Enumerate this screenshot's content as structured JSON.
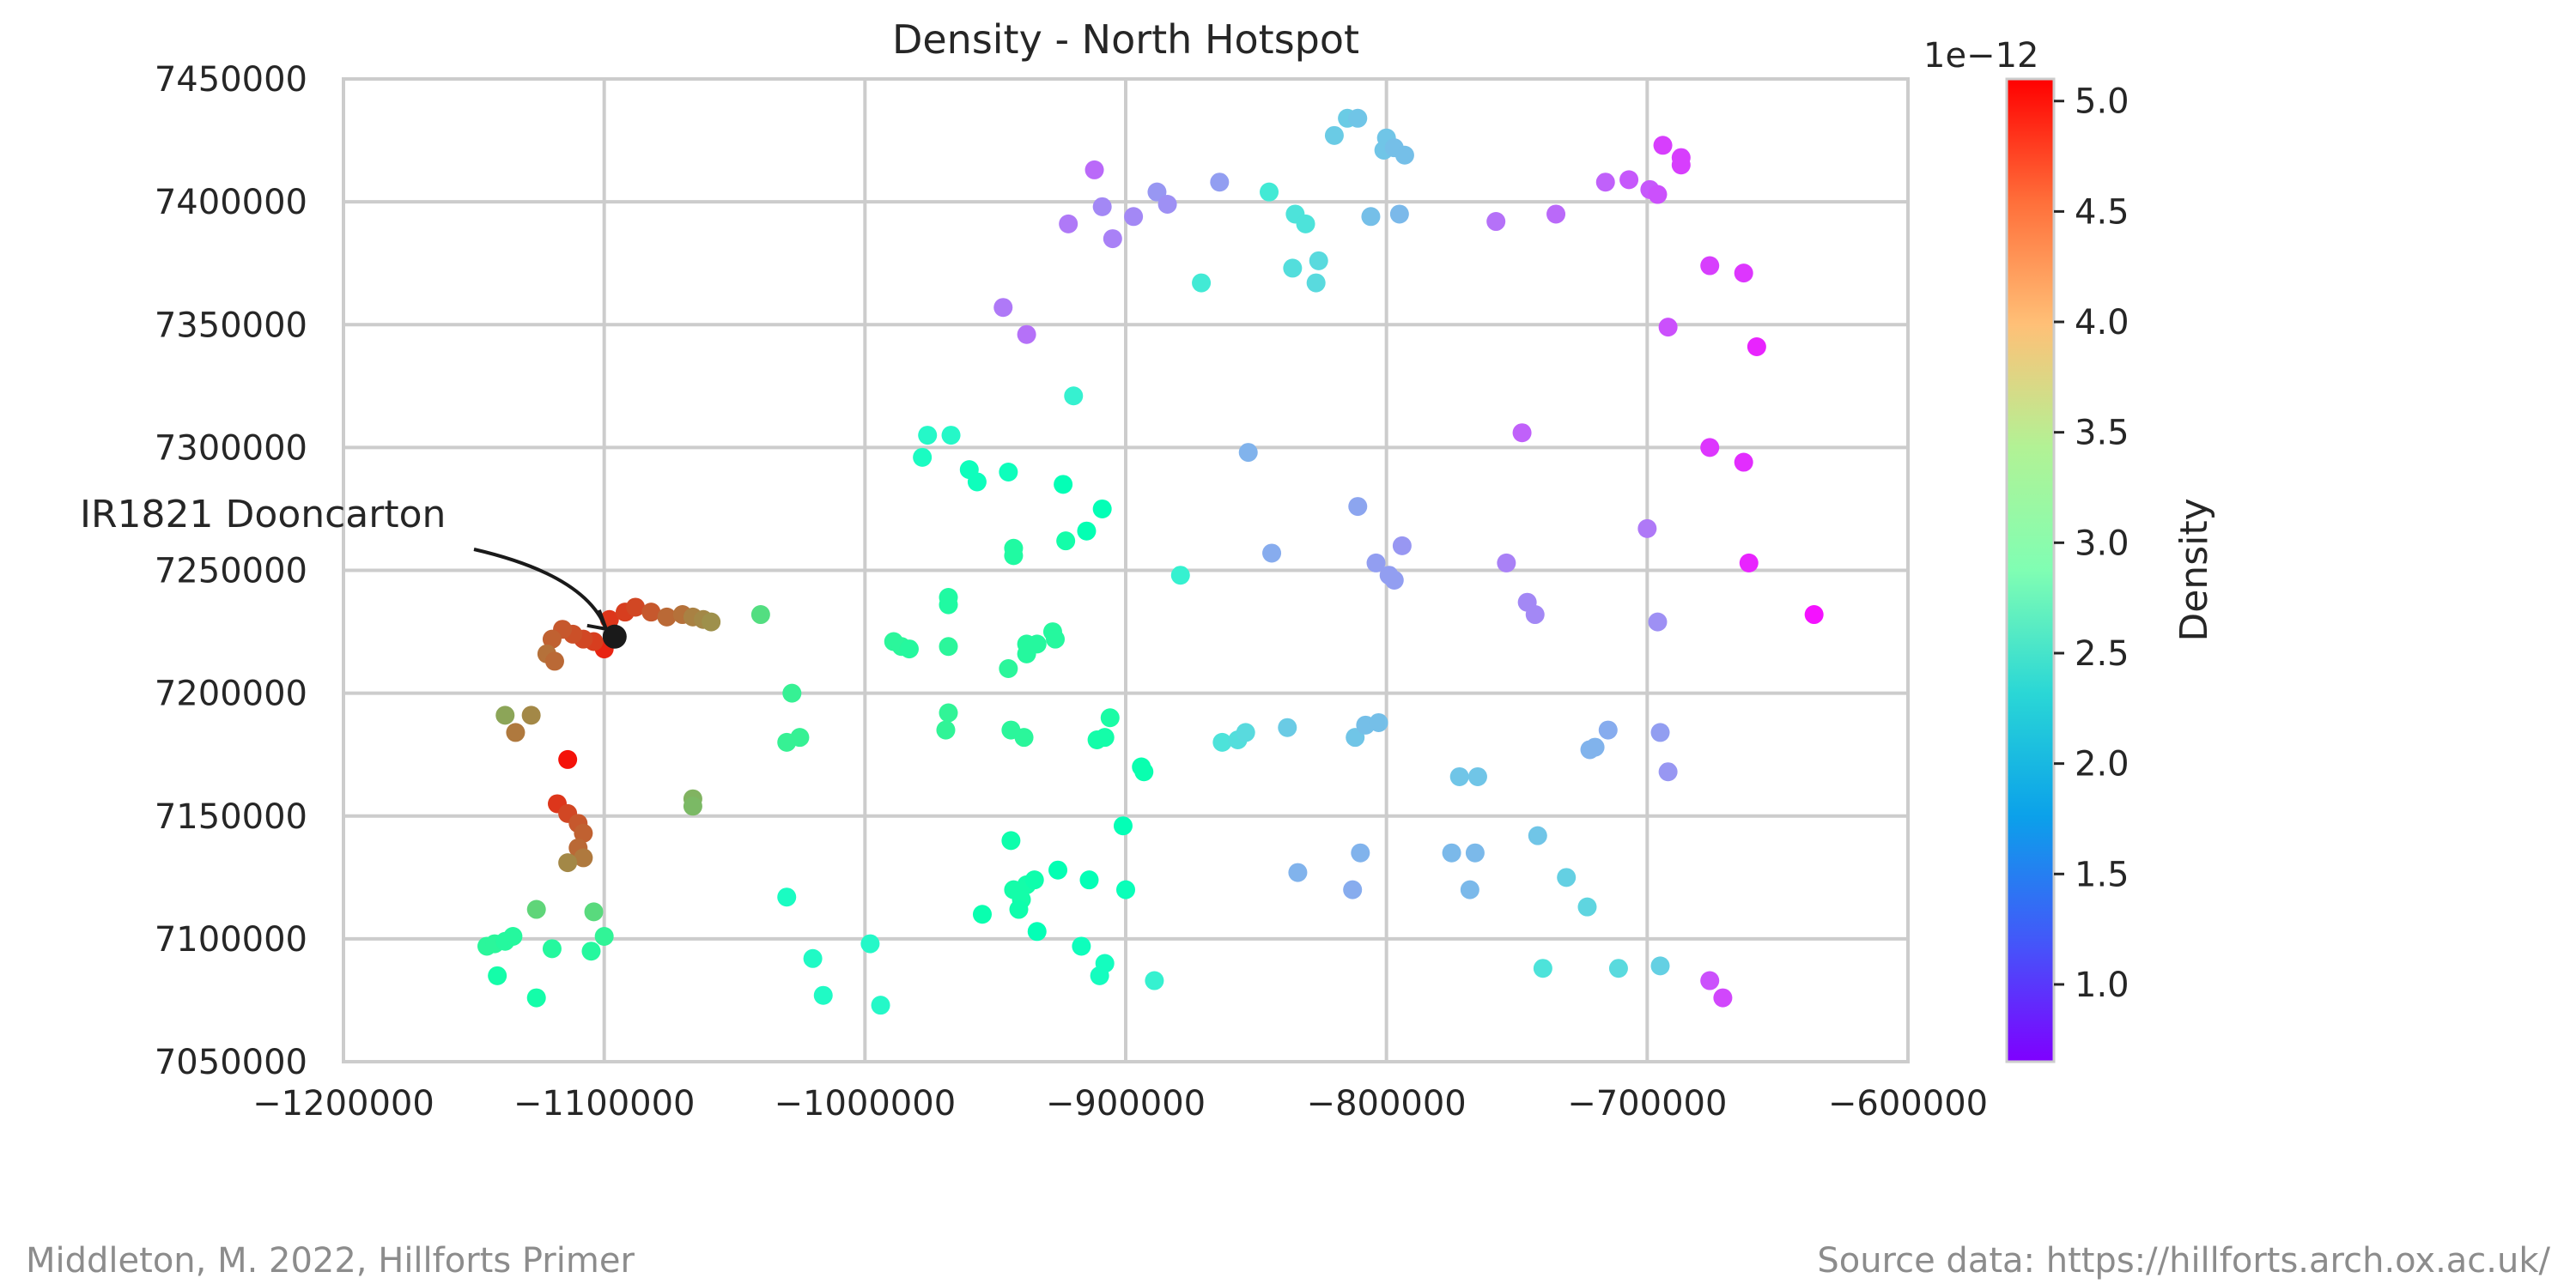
{
  "footer": {
    "left_credit": "Middleton, M. 2022, Hillforts Primer",
    "right_credit": "Source data: https://hillforts.arch.ox.ac.uk/"
  },
  "chart_data": {
    "type": "scatter",
    "title": "Density - North Hotspot",
    "xlabel": "",
    "ylabel": "",
    "xlim": [
      -1200000,
      -600000
    ],
    "ylim": [
      7050000,
      7450000
    ],
    "x_ticks": [
      -1200000,
      -1100000,
      -1000000,
      -900000,
      -800000,
      -700000,
      -600000
    ],
    "x_tick_labels": [
      "−1200000",
      "−1100000",
      "−1000000",
      "−900000",
      "−800000",
      "−700000",
      "−600000"
    ],
    "y_ticks": [
      7050000,
      7100000,
      7150000,
      7200000,
      7250000,
      7300000,
      7350000,
      7400000,
      7450000
    ],
    "y_tick_labels": [
      "7050000",
      "7100000",
      "7150000",
      "7200000",
      "7250000",
      "7300000",
      "7350000",
      "7400000",
      "7450000"
    ],
    "grid": true,
    "colormap": "rainbow",
    "colorbar": {
      "label": "Density",
      "offset_text": "1e−12",
      "range": [
        0.65,
        5.1
      ],
      "ticks": [
        1.0,
        1.5,
        2.0,
        2.5,
        3.0,
        3.5,
        4.0,
        4.5,
        5.0
      ],
      "tick_labels": [
        "1.0",
        "1.5",
        "2.0",
        "2.5",
        "3.0",
        "3.5",
        "4.0",
        "4.5",
        "5.0"
      ]
    },
    "annotation": {
      "text": "IR1821 Dooncarton",
      "x": -1096000,
      "y": 7223000,
      "marker_color": "#1a1a1a"
    },
    "points": [
      [
        -1100000,
        7218000,
        4.9
      ],
      [
        -1104000,
        7221000,
        4.75
      ],
      [
        -1108000,
        7222000,
        4.7
      ],
      [
        -1112000,
        7224000,
        4.65
      ],
      [
        -1116000,
        7226000,
        4.6
      ],
      [
        -1120000,
        7222000,
        4.55
      ],
      [
        -1122000,
        7216000,
        4.45
      ],
      [
        -1119000,
        7213000,
        4.5
      ],
      [
        -1098000,
        7230000,
        4.8
      ],
      [
        -1092000,
        7233000,
        4.75
      ],
      [
        -1088000,
        7235000,
        4.7
      ],
      [
        -1082000,
        7233000,
        4.6
      ],
      [
        -1076000,
        7231000,
        4.5
      ],
      [
        -1070000,
        7232000,
        4.45
      ],
      [
        -1066000,
        7231000,
        4.35
      ],
      [
        -1062000,
        7230000,
        4.3
      ],
      [
        -1059000,
        7229000,
        4.25
      ],
      [
        -1040000,
        7232000,
        3.6
      ],
      [
        -1128000,
        7191000,
        4.3
      ],
      [
        -1134000,
        7184000,
        4.4
      ],
      [
        -1138000,
        7191000,
        4.1
      ],
      [
        -1114000,
        7173000,
        5.0
      ],
      [
        -1118000,
        7155000,
        4.8
      ],
      [
        -1114000,
        7151000,
        4.7
      ],
      [
        -1110000,
        7147000,
        4.6
      ],
      [
        -1108000,
        7143000,
        4.55
      ],
      [
        -1110000,
        7137000,
        4.5
      ],
      [
        -1108000,
        7133000,
        4.4
      ],
      [
        -1114000,
        7131000,
        4.3
      ],
      [
        -1066000,
        7157000,
        4.0
      ],
      [
        -1066000,
        7154000,
        3.95
      ],
      [
        -1126000,
        7112000,
        3.7
      ],
      [
        -1104000,
        7111000,
        3.65
      ],
      [
        -1145000,
        7097000,
        3.25
      ],
      [
        -1142000,
        7098000,
        3.25
      ],
      [
        -1138000,
        7099000,
        3.2
      ],
      [
        -1135000,
        7101000,
        3.2
      ],
      [
        -1120000,
        7096000,
        3.2
      ],
      [
        -1105000,
        7095000,
        3.2
      ],
      [
        -1100000,
        7101000,
        3.3
      ],
      [
        -1141000,
        7085000,
        3.05
      ],
      [
        -1126000,
        7076000,
        3.05
      ],
      [
        -1028000,
        7200000,
        3.35
      ],
      [
        -1030000,
        7180000,
        3.35
      ],
      [
        -1025000,
        7182000,
        3.35
      ],
      [
        -989000,
        7221000,
        3.25
      ],
      [
        -986000,
        7219000,
        3.25
      ],
      [
        -983000,
        7218000,
        3.2
      ],
      [
        -968000,
        7239000,
        3.15
      ],
      [
        -968000,
        7236000,
        3.15
      ],
      [
        -968000,
        7219000,
        3.25
      ],
      [
        -968000,
        7192000,
        3.3
      ],
      [
        -969000,
        7185000,
        3.3
      ],
      [
        -945000,
        7210000,
        3.25
      ],
      [
        -944000,
        7185000,
        3.25
      ],
      [
        -939000,
        7182000,
        3.25
      ],
      [
        -943000,
        7259000,
        3.15
      ],
      [
        -943000,
        7256000,
        3.15
      ],
      [
        -923000,
        7262000,
        3.05
      ],
      [
        -915000,
        7266000,
        2.9
      ],
      [
        -909000,
        7275000,
        2.85
      ],
      [
        -924000,
        7285000,
        2.85
      ],
      [
        -945000,
        7290000,
        2.75
      ],
      [
        -960000,
        7291000,
        2.75
      ],
      [
        -957000,
        7286000,
        2.75
      ],
      [
        -978000,
        7296000,
        2.65
      ],
      [
        -976000,
        7305000,
        2.55
      ],
      [
        -967000,
        7305000,
        2.55
      ],
      [
        -938000,
        7220000,
        3.2
      ],
      [
        -934000,
        7220000,
        3.2
      ],
      [
        -938000,
        7216000,
        3.2
      ],
      [
        -928000,
        7225000,
        3.2
      ],
      [
        -927000,
        7222000,
        3.2
      ],
      [
        -906000,
        7190000,
        3.1
      ],
      [
        -911000,
        7181000,
        3.05
      ],
      [
        -908000,
        7182000,
        3.05
      ],
      [
        -894000,
        7170000,
        2.95
      ],
      [
        -893000,
        7168000,
        2.95
      ],
      [
        -901000,
        7146000,
        2.85
      ],
      [
        -944000,
        7140000,
        3.0
      ],
      [
        -943000,
        7120000,
        3.05
      ],
      [
        -938000,
        7122000,
        3.05
      ],
      [
        -935000,
        7124000,
        3.0
      ],
      [
        -940000,
        7116000,
        3.05
      ],
      [
        -941000,
        7112000,
        3.0
      ],
      [
        -926000,
        7128000,
        2.9
      ],
      [
        -914000,
        7124000,
        2.85
      ],
      [
        -900000,
        7120000,
        2.8
      ],
      [
        -955000,
        7110000,
        2.95
      ],
      [
        -934000,
        7103000,
        2.85
      ],
      [
        -917000,
        7097000,
        2.75
      ],
      [
        -908000,
        7090000,
        2.7
      ],
      [
        -910000,
        7085000,
        2.7
      ],
      [
        -1030000,
        7117000,
        2.65
      ],
      [
        -1020000,
        7092000,
        2.6
      ],
      [
        -1016000,
        7077000,
        2.6
      ],
      [
        -998000,
        7098000,
        2.55
      ],
      [
        -994000,
        7073000,
        2.55
      ],
      [
        -920000,
        7321000,
        2.4
      ],
      [
        -879000,
        7248000,
        2.4
      ],
      [
        -871000,
        7367000,
        2.3
      ],
      [
        -863000,
        7180000,
        2.2
      ],
      [
        -857000,
        7181000,
        2.15
      ],
      [
        -854000,
        7184000,
        2.1
      ],
      [
        -838000,
        7186000,
        1.95
      ],
      [
        -812000,
        7182000,
        1.9
      ],
      [
        -808000,
        7187000,
        1.85
      ],
      [
        -803000,
        7188000,
        1.85
      ],
      [
        -845000,
        7404000,
        2.3
      ],
      [
        -835000,
        7395000,
        2.2
      ],
      [
        -831000,
        7391000,
        2.2
      ],
      [
        -836000,
        7373000,
        2.15
      ],
      [
        -826000,
        7376000,
        2.1
      ],
      [
        -827000,
        7367000,
        2.1
      ],
      [
        -820000,
        7427000,
        1.95
      ],
      [
        -815000,
        7434000,
        1.95
      ],
      [
        -811000,
        7434000,
        1.9
      ],
      [
        -800000,
        7426000,
        1.9
      ],
      [
        -801000,
        7421000,
        1.9
      ],
      [
        -797000,
        7422000,
        1.85
      ],
      [
        -793000,
        7419000,
        1.85
      ],
      [
        -806000,
        7394000,
        1.85
      ],
      [
        -795000,
        7395000,
        1.8
      ],
      [
        -853000,
        7298000,
        1.75
      ],
      [
        -844000,
        7257000,
        1.7
      ],
      [
        -811000,
        7276000,
        1.65
      ],
      [
        -804000,
        7253000,
        1.6
      ],
      [
        -799000,
        7248000,
        1.6
      ],
      [
        -797000,
        7246000,
        1.6
      ],
      [
        -794000,
        7260000,
        1.55
      ],
      [
        -864000,
        7408000,
        1.6
      ],
      [
        -888000,
        7404000,
        1.55
      ],
      [
        -884000,
        7399000,
        1.5
      ],
      [
        -909000,
        7398000,
        1.45
      ],
      [
        -897000,
        7394000,
        1.45
      ],
      [
        -922000,
        7391000,
        1.35
      ],
      [
        -905000,
        7385000,
        1.4
      ],
      [
        -912000,
        7413000,
        1.25
      ],
      [
        -947000,
        7357000,
        1.35
      ],
      [
        -938000,
        7346000,
        1.3
      ],
      [
        -834000,
        7127000,
        1.75
      ],
      [
        -810000,
        7135000,
        1.75
      ],
      [
        -813000,
        7120000,
        1.7
      ],
      [
        -775000,
        7135000,
        1.8
      ],
      [
        -766000,
        7135000,
        1.8
      ],
      [
        -768000,
        7120000,
        1.8
      ],
      [
        -772000,
        7166000,
        1.9
      ],
      [
        -765000,
        7166000,
        1.9
      ],
      [
        -742000,
        7142000,
        1.9
      ],
      [
        -731000,
        7125000,
        2.0
      ],
      [
        -723000,
        7113000,
        2.05
      ],
      [
        -740000,
        7088000,
        2.2
      ],
      [
        -711000,
        7088000,
        2.1
      ],
      [
        -695000,
        7089000,
        2.0
      ],
      [
        -889000,
        7083000,
        2.4
      ],
      [
        -722000,
        7177000,
        1.75
      ],
      [
        -720000,
        7178000,
        1.75
      ],
      [
        -715000,
        7185000,
        1.7
      ],
      [
        -695000,
        7184000,
        1.6
      ],
      [
        -692000,
        7168000,
        1.55
      ],
      [
        -696000,
        7229000,
        1.5
      ],
      [
        -743000,
        7232000,
        1.45
      ],
      [
        -746000,
        7237000,
        1.45
      ],
      [
        -754000,
        7253000,
        1.4
      ],
      [
        -700000,
        7267000,
        1.35
      ],
      [
        -748000,
        7306000,
        1.2
      ],
      [
        -758000,
        7392000,
        1.3
      ],
      [
        -735000,
        7395000,
        1.25
      ],
      [
        -716000,
        7408000,
        1.2
      ],
      [
        -707000,
        7409000,
        1.15
      ],
      [
        -699000,
        7405000,
        1.15
      ],
      [
        -696000,
        7403000,
        1.1
      ],
      [
        -694000,
        7423000,
        1.0
      ],
      [
        -687000,
        7418000,
        1.0
      ],
      [
        -687000,
        7415000,
        1.0
      ],
      [
        -676000,
        7374000,
        1.0
      ],
      [
        -663000,
        7371000,
        0.95
      ],
      [
        -692000,
        7349000,
        1.1
      ],
      [
        -676000,
        7300000,
        0.95
      ],
      [
        -663000,
        7294000,
        0.9
      ],
      [
        -658000,
        7341000,
        0.85
      ],
      [
        -661000,
        7253000,
        0.85
      ],
      [
        -676000,
        7083000,
        1.1
      ],
      [
        -671000,
        7076000,
        1.05
      ],
      [
        -636000,
        7232000,
        0.75
      ]
    ]
  }
}
